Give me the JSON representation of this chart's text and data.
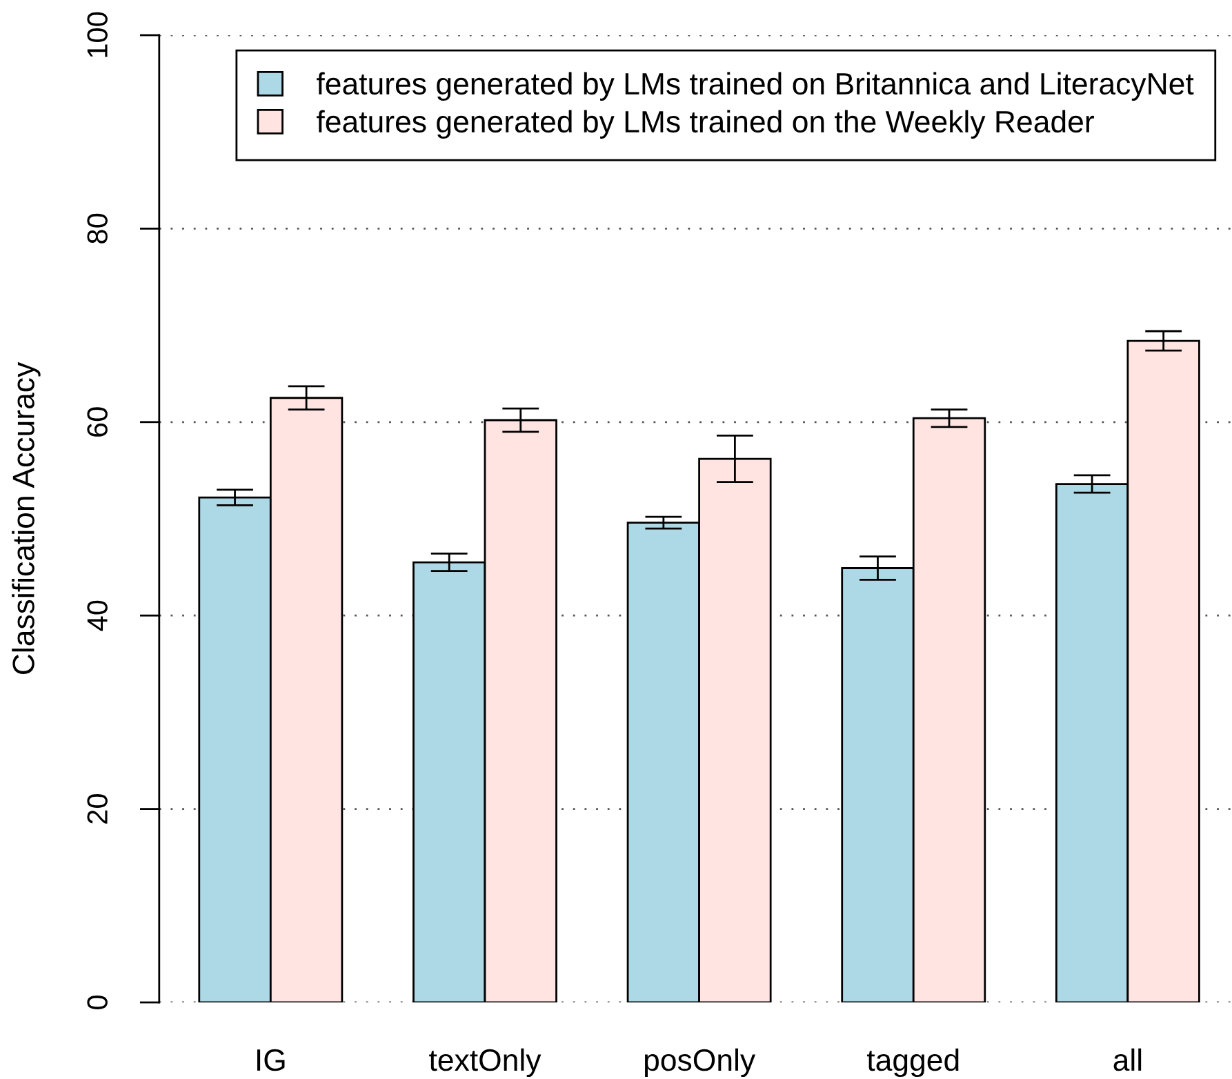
{
  "chart_data": {
    "type": "bar",
    "ylabel": "Classification Accuracy",
    "categories": [
      "IG",
      "textOnly",
      "posOnly",
      "tagged",
      "all"
    ],
    "series": [
      {
        "name": "features generated by LMs trained on Britannica and LiteracyNet",
        "color": "#add8e6",
        "values": [
          52.2,
          45.5,
          49.6,
          44.9,
          53.6
        ],
        "errors": [
          0.8,
          0.9,
          0.6,
          1.2,
          0.9
        ]
      },
      {
        "name": "features generated by LMs trained on the Weekly Reader",
        "color": "#ffe4e1",
        "values": [
          62.5,
          60.2,
          56.2,
          60.4,
          68.4
        ],
        "errors": [
          1.2,
          1.2,
          2.4,
          0.9,
          1.0
        ]
      }
    ],
    "ylim": [
      0,
      100
    ],
    "yticks": [
      0,
      20,
      40,
      60,
      80,
      100
    ],
    "grid": "y",
    "legend": "top right"
  }
}
